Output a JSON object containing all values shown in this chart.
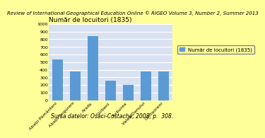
{
  "title": "Număr de locuitori (1835)",
  "header": "Review of International Geographical Education Online © RIGEO Volume 3, Number 2, Summer 2013",
  "footer": "Sursa datelor: Osaci-Costache, 2008, p.  308.",
  "categories": [
    "Abații Pământeni",
    "Abații Ungureni",
    "Aradş",
    "Corbeni",
    "Turburea",
    "Valea Danului",
    "Corbşoreni"
  ],
  "values": [
    540,
    375,
    845,
    255,
    205,
    380,
    380
  ],
  "bar_color": "#5B9BD5",
  "legend_label": "Număr de locuitori (1835)",
  "ylim": [
    0,
    1000
  ],
  "yticks": [
    0,
    100,
    200,
    300,
    400,
    500,
    600,
    700,
    800,
    900,
    1000
  ],
  "background_color": "#FFFF99",
  "header_bg_color": "#C0C0C0",
  "chart_bg_color": "#D9E2F3",
  "grid_color": "#FFFFFF",
  "header_fontsize": 5.0,
  "title_fontsize": 6.5,
  "footer_fontsize": 5.5,
  "tick_fontsize": 4.5,
  "legend_fontsize": 5.0
}
